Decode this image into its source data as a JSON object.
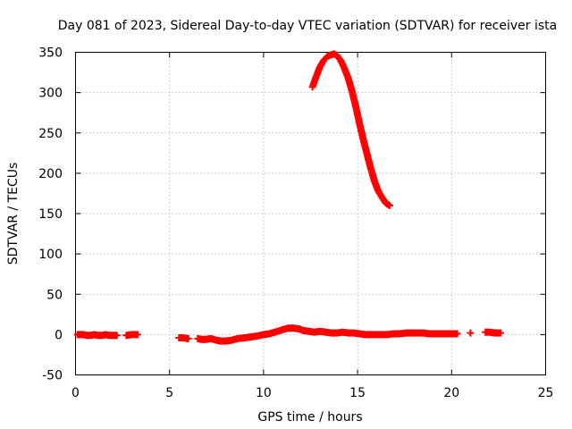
{
  "chart_data": {
    "type": "scatter",
    "title": "Day 081 of 2023, Sidereal Day-to-day VTEC variation (SDTVAR) for receiver ista",
    "xlabel": "GPS time / hours",
    "ylabel": "SDTVAR / TECUs",
    "xlim": [
      0,
      25
    ],
    "ylim": [
      -50,
      350
    ],
    "xticks": [
      "0",
      "5",
      "10",
      "15",
      "20",
      "25"
    ],
    "yticks": [
      "-50",
      "0",
      "50",
      "100",
      "150",
      "200",
      "250",
      "300",
      "350"
    ],
    "grid": true,
    "marker": "plus",
    "color": "#ff0000",
    "series": [
      {
        "name": "SDTVAR",
        "x": [
          0.1,
          0.4,
          0.6,
          0.8,
          1.0,
          1.2,
          1.4,
          1.6,
          1.8,
          2.0,
          2.2,
          2.7,
          3.0,
          3.3,
          5.5,
          5.7,
          6.0,
          6.5,
          6.7,
          6.9,
          7.2,
          7.5,
          7.7,
          8.0,
          8.3,
          8.6,
          9.0,
          9.3,
          9.6,
          10.0,
          10.3,
          10.6,
          11.0,
          11.3,
          11.6,
          11.9,
          12.1,
          12.4,
          12.7,
          13.0,
          13.3,
          13.6,
          13.9,
          14.2,
          14.5,
          14.8,
          15.1,
          15.4,
          15.7,
          16.0,
          16.3,
          16.6,
          16.9,
          17.2,
          17.6,
          17.9,
          18.2,
          18.5,
          18.8,
          19.1,
          19.4,
          19.7,
          20.0,
          20.3,
          21.0,
          21.8,
          22.0,
          22.3,
          22.6,
          12.6,
          12.8,
          13.0,
          13.2,
          13.4,
          13.6,
          13.75,
          13.9,
          14.1,
          14.3,
          14.5,
          14.7,
          14.9,
          15.1,
          15.3,
          15.5,
          15.7,
          15.9,
          16.1,
          16.3,
          16.5,
          16.7
        ],
        "y": [
          0,
          0,
          -1,
          -1,
          0,
          -1,
          -1,
          0,
          -1,
          -1,
          -1,
          -1,
          0,
          0,
          -4,
          -4,
          -5,
          -5,
          -6,
          -6,
          -5,
          -7,
          -8,
          -8,
          -7,
          -5,
          -4,
          -3,
          -2,
          0,
          1,
          3,
          6,
          8,
          8,
          7,
          5,
          4,
          3,
          4,
          3,
          2,
          2,
          3,
          2,
          2,
          1,
          0,
          0,
          0,
          0,
          0,
          1,
          1,
          2,
          2,
          2,
          2,
          1,
          1,
          1,
          1,
          1,
          1,
          2,
          3,
          3,
          2,
          2,
          307,
          320,
          332,
          340,
          345,
          347,
          348,
          346,
          340,
          330,
          318,
          302,
          283,
          262,
          242,
          224,
          206,
          190,
          178,
          170,
          163,
          160
        ]
      }
    ]
  }
}
